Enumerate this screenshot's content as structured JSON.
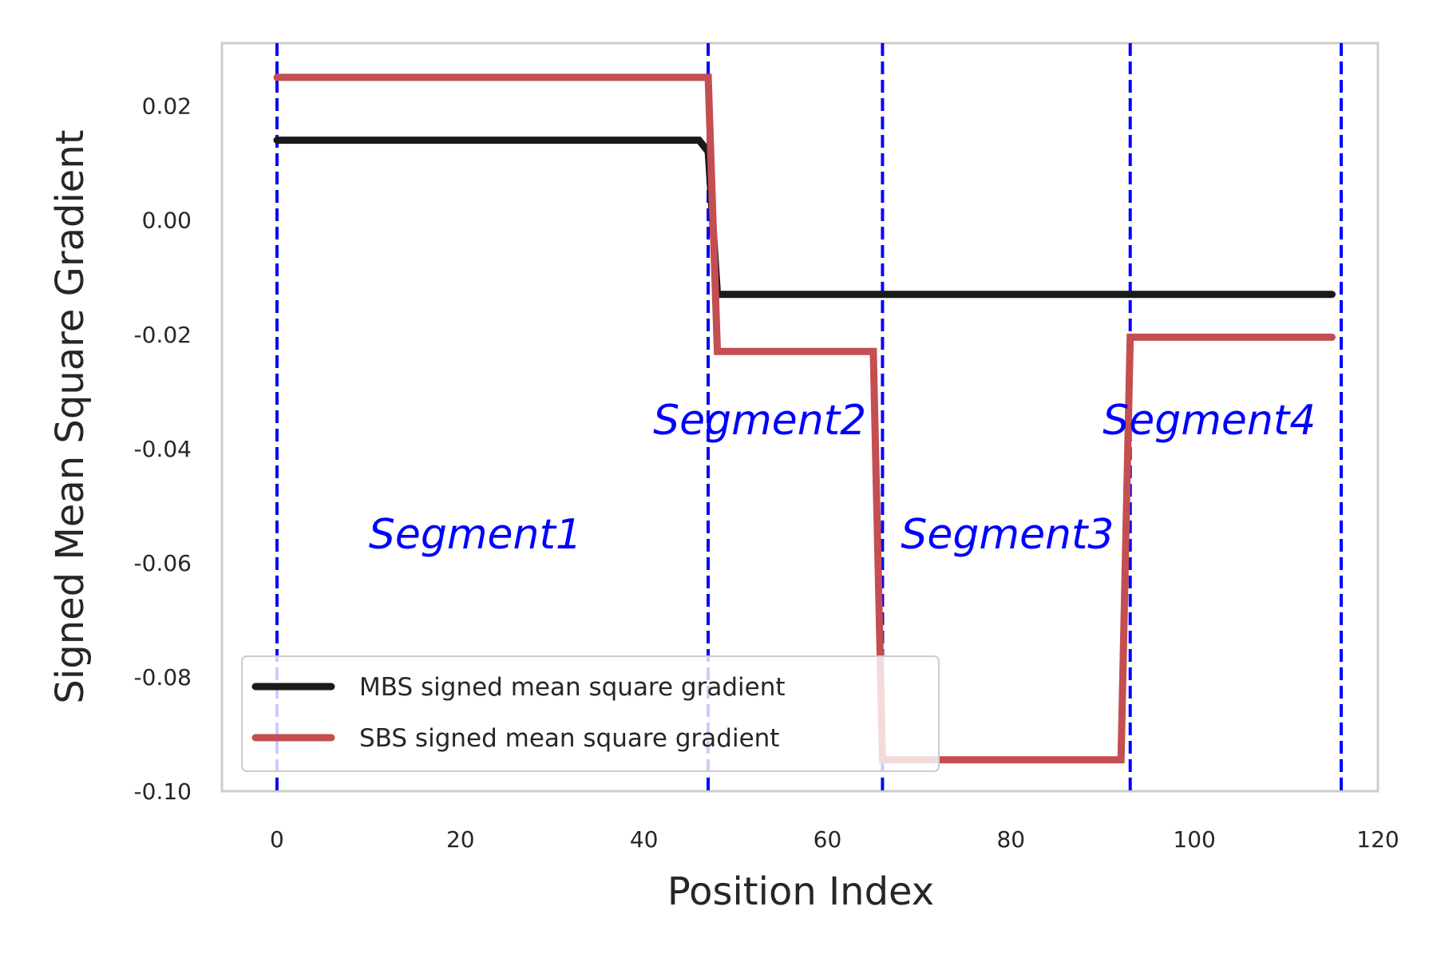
{
  "chart_data": {
    "type": "line",
    "title": "",
    "xlabel": "Position Index",
    "ylabel": "Signed Mean Square Gradient",
    "xlim": [
      -6,
      120
    ],
    "ylim": [
      -0.1,
      0.031
    ],
    "xticks": [
      0,
      20,
      40,
      60,
      80,
      100,
      120
    ],
    "xtick_labels": [
      "0",
      "20",
      "40",
      "60",
      "80",
      "100",
      "120"
    ],
    "yticks": [
      0.02,
      0.0,
      -0.02,
      -0.04,
      -0.06,
      -0.08,
      -0.1
    ],
    "ytick_labels": [
      "0.02",
      "0.00",
      "-0.02",
      "-0.04",
      "-0.06",
      "-0.08",
      "-0.10"
    ],
    "grid": false,
    "legend_position": "lower-left",
    "series": [
      {
        "name": "MBS signed mean square gradient",
        "color": "#1a1a1a",
        "x": [
          0,
          46,
          47,
          48,
          115
        ],
        "y": [
          0.014,
          0.014,
          0.012,
          -0.013,
          -0.013
        ]
      },
      {
        "name": "SBS signed mean square gradient",
        "color": "#c44e52",
        "x": [
          0,
          47,
          48,
          65,
          66,
          92,
          93,
          115
        ],
        "y": [
          0.025,
          0.025,
          -0.023,
          -0.023,
          -0.0945,
          -0.0945,
          -0.0205,
          -0.0205
        ]
      }
    ],
    "vlines": {
      "x": [
        0,
        47,
        66,
        93,
        116
      ],
      "color": "#0000ff",
      "style": "dashed"
    },
    "annotations": [
      {
        "text": "Segment1",
        "x": 10,
        "y": -0.055
      },
      {
        "text": "Segment2",
        "x": 41,
        "y": -0.035
      },
      {
        "text": "Segment3",
        "x": 68,
        "y": -0.055
      },
      {
        "text": "Segment4",
        "x": 90,
        "y": -0.035
      }
    ]
  }
}
